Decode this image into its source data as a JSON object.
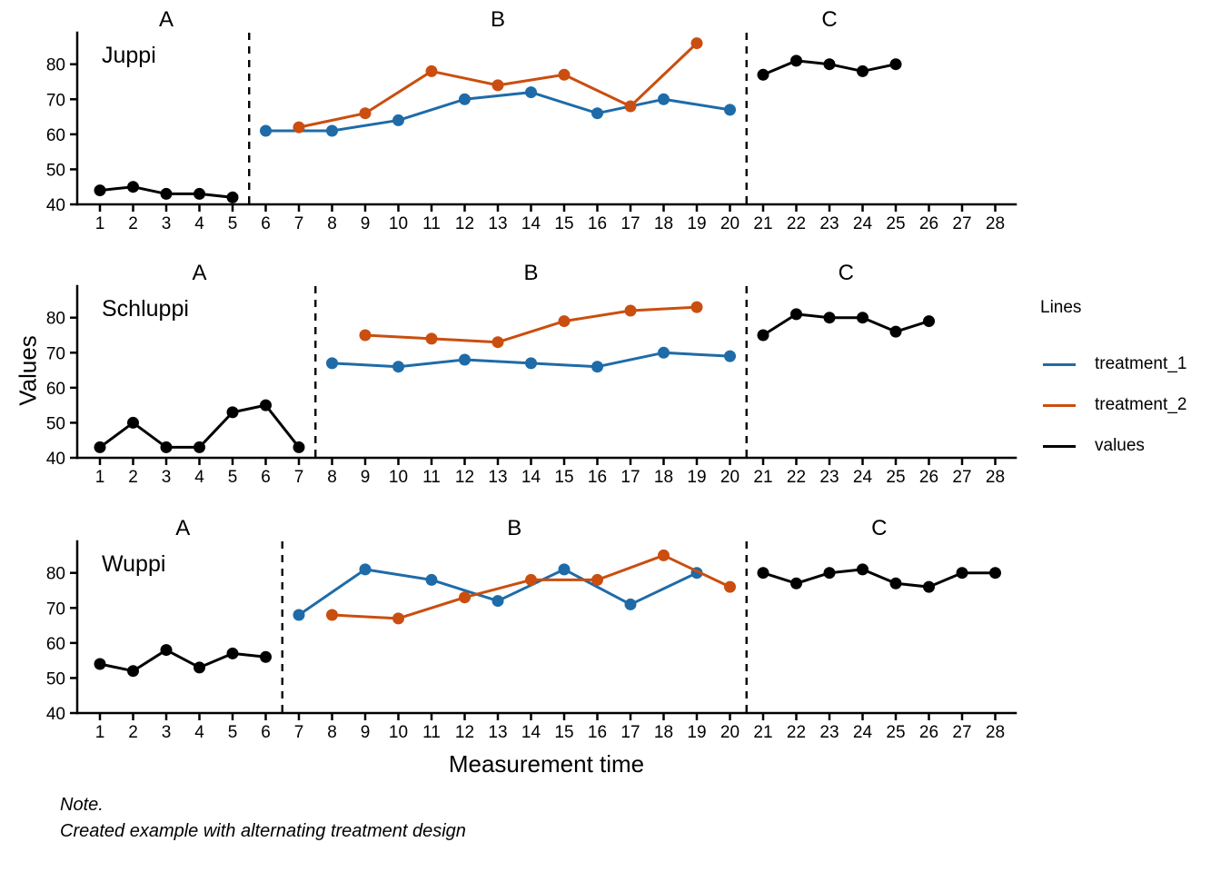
{
  "figure": {
    "xlabel": "Measurement time",
    "ylabel": "Values",
    "note_line1": "Note.",
    "note_line2": "Created example with alternating treatment design"
  },
  "chart_data": {
    "type": "line",
    "title": "",
    "xlabel": "Measurement time",
    "ylabel": "Values",
    "x_ticks": [
      1,
      2,
      3,
      4,
      5,
      6,
      7,
      8,
      9,
      10,
      11,
      12,
      13,
      14,
      15,
      16,
      17,
      18,
      19,
      20,
      21,
      22,
      23,
      24,
      25,
      26,
      27,
      28
    ],
    "y_ticks": [
      40,
      50,
      60,
      70,
      80
    ],
    "xlim": [
      0.3,
      28.6
    ],
    "ylim": [
      40,
      89
    ],
    "grid": false,
    "colors": {
      "treatment_1": "#1e6ba8",
      "treatment_2": "#ca4e0f",
      "values": "#000000"
    },
    "legend": {
      "title": "Lines",
      "position": "right",
      "entries": [
        {
          "label": "treatment_1",
          "color": "#1e6ba8"
        },
        {
          "label": "treatment_2",
          "color": "#ca4e0f"
        },
        {
          "label": "values",
          "color": "#000000"
        }
      ]
    },
    "panels": [
      {
        "name": "Juppi",
        "phase_separators": [
          5.5,
          20.5
        ],
        "phase_labels": [
          {
            "label": "A",
            "x": 3
          },
          {
            "label": "B",
            "x": 13
          },
          {
            "label": "C",
            "x": 23
          }
        ],
        "series": [
          {
            "legend": "values",
            "color": "#000000",
            "points": [
              [
                1,
                44
              ],
              [
                2,
                45
              ],
              [
                3,
                43
              ],
              [
                4,
                43
              ],
              [
                5,
                42
              ]
            ]
          },
          {
            "legend": "treatment_1",
            "color": "#1e6ba8",
            "points": [
              [
                6,
                61
              ],
              [
                8,
                61
              ],
              [
                10,
                64
              ],
              [
                12,
                70
              ],
              [
                14,
                72
              ],
              [
                16,
                66
              ],
              [
                18,
                70
              ],
              [
                20,
                67
              ]
            ]
          },
          {
            "legend": "treatment_2",
            "color": "#ca4e0f",
            "points": [
              [
                7,
                62
              ],
              [
                9,
                66
              ],
              [
                11,
                78
              ],
              [
                13,
                74
              ],
              [
                15,
                77
              ],
              [
                17,
                68
              ],
              [
                19,
                86
              ]
            ]
          },
          {
            "legend": "values",
            "color": "#000000",
            "points": [
              [
                21,
                77
              ],
              [
                22,
                81
              ],
              [
                23,
                80
              ],
              [
                24,
                78
              ],
              [
                25,
                80
              ]
            ]
          }
        ]
      },
      {
        "name": "Schluppi",
        "phase_separators": [
          7.5,
          20.5
        ],
        "phase_labels": [
          {
            "label": "A",
            "x": 4
          },
          {
            "label": "B",
            "x": 14
          },
          {
            "label": "C",
            "x": 23.5
          }
        ],
        "series": [
          {
            "legend": "values",
            "color": "#000000",
            "points": [
              [
                1,
                43
              ],
              [
                2,
                50
              ],
              [
                3,
                43
              ],
              [
                4,
                43
              ],
              [
                5,
                53
              ],
              [
                6,
                55
              ],
              [
                7,
                43
              ]
            ]
          },
          {
            "legend": "treatment_1",
            "color": "#1e6ba8",
            "points": [
              [
                8,
                67
              ],
              [
                10,
                66
              ],
              [
                12,
                68
              ],
              [
                14,
                67
              ],
              [
                16,
                66
              ],
              [
                18,
                70
              ],
              [
                20,
                69
              ]
            ]
          },
          {
            "legend": "treatment_2",
            "color": "#ca4e0f",
            "points": [
              [
                9,
                75
              ],
              [
                11,
                74
              ],
              [
                13,
                73
              ],
              [
                15,
                79
              ],
              [
                17,
                82
              ],
              [
                19,
                83
              ]
            ]
          },
          {
            "legend": "values",
            "color": "#000000",
            "points": [
              [
                21,
                75
              ],
              [
                22,
                81
              ],
              [
                23,
                80
              ],
              [
                24,
                80
              ],
              [
                25,
                76
              ],
              [
                26,
                79
              ]
            ]
          }
        ]
      },
      {
        "name": "Wuppi",
        "phase_separators": [
          6.5,
          20.5
        ],
        "phase_labels": [
          {
            "label": "A",
            "x": 3.5
          },
          {
            "label": "B",
            "x": 13.5
          },
          {
            "label": "C",
            "x": 24.5
          }
        ],
        "series": [
          {
            "legend": "values",
            "color": "#000000",
            "points": [
              [
                1,
                54
              ],
              [
                2,
                52
              ],
              [
                3,
                58
              ],
              [
                4,
                53
              ],
              [
                5,
                57
              ],
              [
                6,
                56
              ]
            ]
          },
          {
            "legend": "treatment_1",
            "color": "#1e6ba8",
            "points": [
              [
                7,
                68
              ],
              [
                9,
                81
              ],
              [
                11,
                78
              ],
              [
                13,
                72
              ],
              [
                15,
                81
              ],
              [
                17,
                71
              ],
              [
                19,
                80
              ]
            ]
          },
          {
            "legend": "treatment_2",
            "color": "#ca4e0f",
            "points": [
              [
                8,
                68
              ],
              [
                10,
                67
              ],
              [
                12,
                73
              ],
              [
                14,
                78
              ],
              [
                16,
                78
              ],
              [
                18,
                85
              ],
              [
                20,
                76
              ]
            ]
          },
          {
            "legend": "values",
            "color": "#000000",
            "points": [
              [
                21,
                80
              ],
              [
                22,
                77
              ],
              [
                23,
                80
              ],
              [
                24,
                81
              ],
              [
                25,
                77
              ],
              [
                26,
                76
              ],
              [
                27,
                80
              ],
              [
                28,
                80
              ]
            ]
          }
        ]
      }
    ]
  }
}
